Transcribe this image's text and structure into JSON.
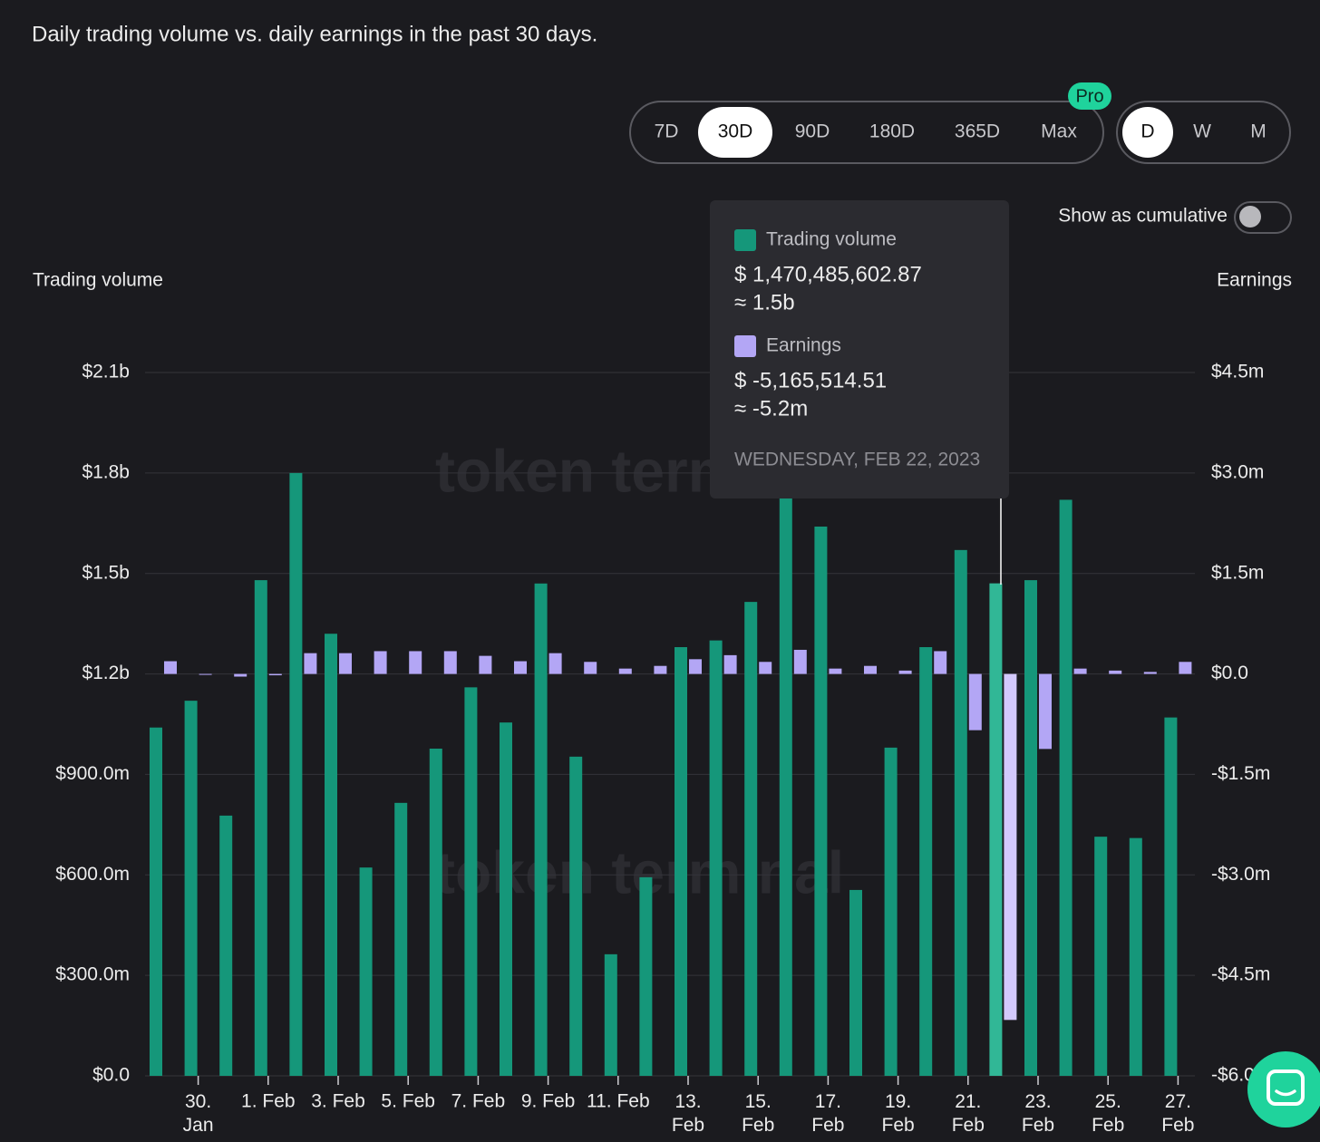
{
  "header": {
    "title": "Daily trading volume vs. daily earnings in the past 30 days."
  },
  "controls": {
    "ranges": [
      "7D",
      "30D",
      "90D",
      "180D",
      "365D",
      "Max"
    ],
    "active_range": "30D",
    "pro_badge": "Pro",
    "granularity": [
      "D",
      "W",
      "M"
    ],
    "active_granularity": "D",
    "cumulative_label": "Show as cumulative"
  },
  "watermark": "token terminal",
  "chart_data": {
    "type": "bar",
    "y_label": "Trading volume",
    "y2_label": "Earnings",
    "categories": [
      null,
      "30.\nJan",
      null,
      "1. Feb",
      null,
      "3. Feb",
      null,
      "5. Feb",
      null,
      "7. Feb",
      null,
      "9. Feb",
      null,
      "11. Feb",
      null,
      "13.\nFeb",
      null,
      "15.\nFeb",
      null,
      "17.\nFeb",
      null,
      "19.\nFeb",
      null,
      "21.\nFeb",
      null,
      "23.\nFeb",
      null,
      "25.\nFeb",
      null,
      "27.\nFeb"
    ],
    "series": [
      {
        "name": "Trading volume",
        "color": "#15977a",
        "values": [
          1040000000,
          1120000000,
          777000000,
          1480000000,
          1800000000,
          1320000000,
          622000000,
          815000000,
          977000000,
          1160000000,
          1055000000,
          1470000000,
          953000000,
          363000000,
          593000000,
          1280000000,
          1300000000,
          1415000000,
          1740000000,
          1640000000,
          555000000,
          980000000,
          1280000000,
          1570000000,
          1470485602.87,
          1480000000,
          1720000000,
          714000000,
          710000000,
          1070000000
        ]
      },
      {
        "name": "Earnings",
        "color": "#b3a6f5",
        "axis": "y2",
        "values": [
          190000,
          -10000,
          -40000,
          -20000,
          310000,
          310000,
          340000,
          340000,
          340000,
          270000,
          190000,
          310000,
          180000,
          80000,
          120000,
          220000,
          280000,
          180000,
          360000,
          80000,
          120000,
          50000,
          340000,
          -840000,
          -5165514.51,
          -1120000,
          80000,
          50000,
          30000,
          180000
        ]
      }
    ],
    "ylim": [
      0,
      2100000000
    ],
    "yticks": [
      {
        "value": 0,
        "label": "$0.0"
      },
      {
        "value": 300000000,
        "label": "$300.0m"
      },
      {
        "value": 600000000,
        "label": "$600.0m"
      },
      {
        "value": 900000000,
        "label": "$900.0m"
      },
      {
        "value": 1200000000,
        "label": "$1.2b"
      },
      {
        "value": 1500000000,
        "label": "$1.5b"
      },
      {
        "value": 1800000000,
        "label": "$1.8b"
      },
      {
        "value": 2100000000,
        "label": "$2.1b"
      }
    ],
    "y2lim": [
      -6000000,
      4500000
    ],
    "y2ticks": [
      {
        "value": -6000000,
        "label": "-$6.0m"
      },
      {
        "value": -4500000,
        "label": "-$4.5m"
      },
      {
        "value": -3000000,
        "label": "-$3.0m"
      },
      {
        "value": -1500000,
        "label": "-$1.5m"
      },
      {
        "value": 0,
        "label": "$0.0"
      },
      {
        "value": 1500000,
        "label": "$1.5m"
      },
      {
        "value": 3000000,
        "label": "$3.0m"
      },
      {
        "value": 4500000,
        "label": "$4.5m"
      }
    ],
    "grid": true,
    "tooltip": {
      "volume_exact": "$ 1,470,485,602.87",
      "volume_approx": "≈ 1.5b",
      "earnings_exact": "$ -5,165,514.51",
      "earnings_approx": "≈ -5.2m",
      "date": "WEDNESDAY, FEB 22, 2023"
    }
  }
}
